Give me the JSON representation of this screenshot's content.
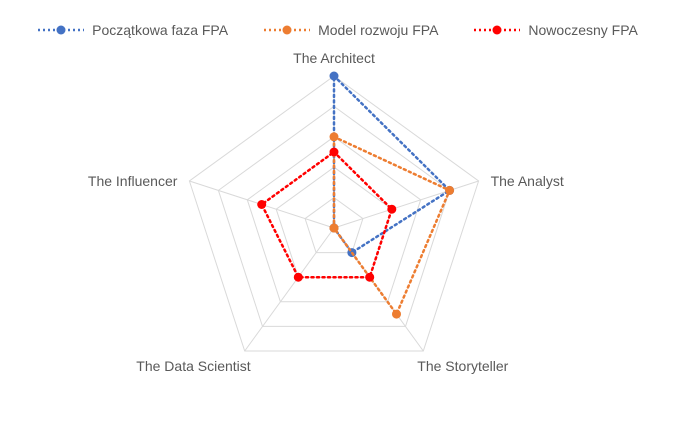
{
  "chart_data": {
    "type": "radar",
    "title": "",
    "axes": [
      "The Architect",
      "The Analyst",
      "The Storyteller",
      "The Data Scientist",
      "The Influencer"
    ],
    "range": [
      0,
      5
    ],
    "rings": 5,
    "legend_position": "top",
    "series": [
      {
        "name": "Początkowa faza FPA",
        "color": "#4472C4",
        "values": [
          5,
          4,
          1,
          0,
          0
        ]
      },
      {
        "name": "Model rozwoju FPA",
        "color": "#ED7D31",
        "values": [
          3,
          4,
          3.5,
          0,
          0
        ]
      },
      {
        "name": "Nowoczesny FPA",
        "color": "#FF0000",
        "values": [
          2.5,
          2,
          2,
          2,
          2.5
        ]
      }
    ]
  }
}
